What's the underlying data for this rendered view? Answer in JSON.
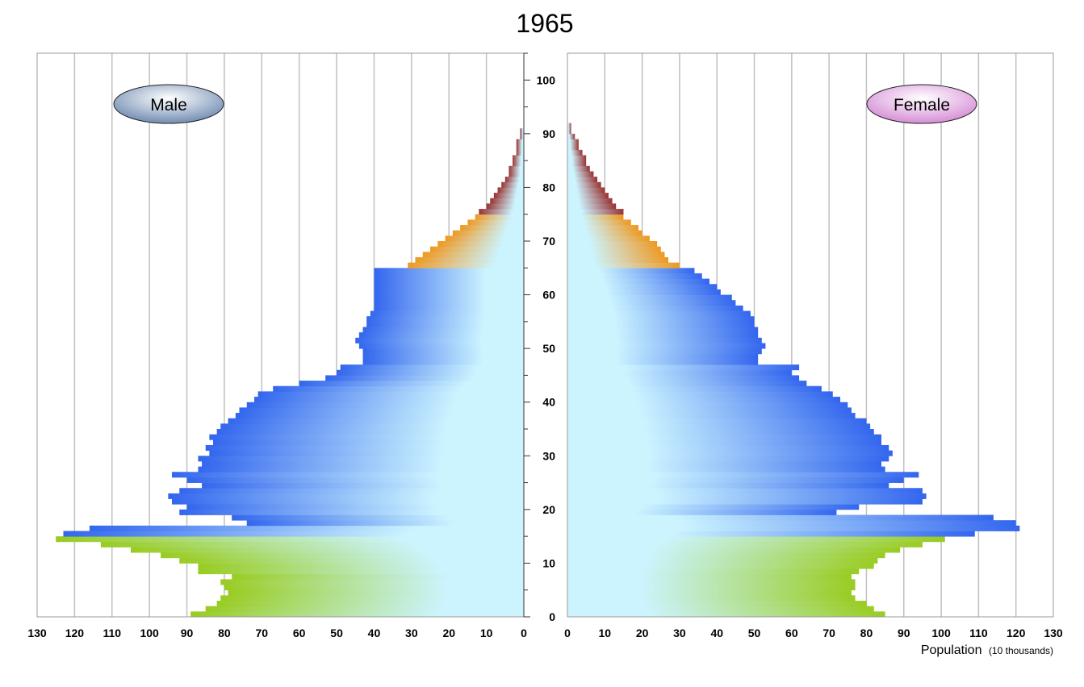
{
  "chart_data": {
    "type": "bar",
    "subtype": "population-pyramid",
    "title": "1965",
    "xlabel": "Population",
    "xlabel_unit": "(10 thousands)",
    "ylabel": "",
    "xlim": [
      0,
      130
    ],
    "age_range": [
      0,
      105
    ],
    "x_ticks": [
      "0",
      "10",
      "20",
      "30",
      "40",
      "50",
      "60",
      "70",
      "80",
      "90",
      "100",
      "110",
      "120",
      "130"
    ],
    "age_ticks": [
      "0",
      "10",
      "20",
      "30",
      "40",
      "50",
      "60",
      "70",
      "80",
      "90",
      "100"
    ],
    "legend": [
      "Male",
      "Female"
    ],
    "age_groups": [
      {
        "name": "0-14",
        "ages": [
          0,
          14
        ],
        "color": "#99cc22"
      },
      {
        "name": "15-64",
        "ages": [
          15,
          64
        ],
        "color": "#3366ee"
      },
      {
        "name": "65-74",
        "ages": [
          65,
          74
        ],
        "color": "#ee9922"
      },
      {
        "name": "75+",
        "ages": [
          75,
          100
        ],
        "color": "#993333"
      }
    ],
    "base_color": "#ccf4ff",
    "series": [
      {
        "name": "Male",
        "values": [
          89,
          85,
          82,
          81,
          79,
          80,
          81,
          78,
          87,
          87,
          92,
          97,
          105,
          113,
          125,
          123,
          116,
          74,
          78,
          92,
          90,
          94,
          95,
          92,
          86,
          90,
          94,
          87,
          86,
          87,
          84,
          85,
          83,
          84,
          82,
          81,
          79,
          77,
          76,
          74,
          72,
          71,
          67,
          60,
          53,
          50,
          49,
          43,
          43,
          43,
          44,
          45,
          44,
          43,
          42,
          42,
          41,
          40,
          40,
          40,
          40,
          40,
          40,
          40,
          40,
          31,
          29,
          27,
          25,
          23,
          21,
          19,
          17,
          15,
          13,
          12,
          10,
          9,
          8,
          7,
          6,
          5,
          4,
          4,
          3,
          3,
          2,
          2,
          2,
          1,
          1,
          0,
          0,
          0,
          0,
          0,
          0,
          0,
          0,
          0,
          0
        ],
        "legend_color": "#8ea6c4"
      },
      {
        "name": "Female",
        "values": [
          85,
          82,
          80,
          77,
          76,
          77,
          77,
          76,
          78,
          82,
          83,
          85,
          89,
          95,
          101,
          109,
          121,
          120,
          114,
          72,
          78,
          95,
          96,
          95,
          86,
          90,
          94,
          85,
          84,
          86,
          87,
          86,
          84,
          84,
          82,
          81,
          80,
          77,
          76,
          75,
          73,
          71,
          68,
          64,
          62,
          60,
          62,
          51,
          51,
          52,
          53,
          52,
          51,
          51,
          50,
          50,
          49,
          47,
          45,
          44,
          41,
          40,
          38,
          36,
          34,
          30,
          27,
          26,
          25,
          24,
          22,
          20,
          19,
          17,
          15,
          15,
          13,
          12,
          11,
          10,
          9,
          8,
          7,
          6,
          5,
          5,
          4,
          3,
          3,
          2,
          1,
          1,
          0,
          0,
          0,
          0,
          0,
          0,
          0,
          0,
          0
        ],
        "legend_color": "#e0a8e0"
      }
    ]
  }
}
